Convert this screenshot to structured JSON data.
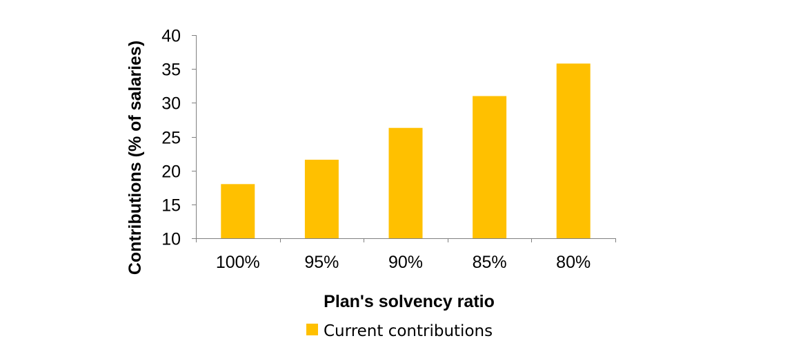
{
  "chart_data": {
    "type": "bar",
    "categories": [
      "100%",
      "95%",
      "90%",
      "85%",
      "80%"
    ],
    "series": [
      {
        "name": "Current contributions",
        "values": [
          18,
          21.6,
          26.3,
          31,
          35.8
        ],
        "color": "#FFC000"
      }
    ],
    "xlabel": "Plan's solvency ratio",
    "ylabel": "Contributions (% of salaries)",
    "ylim": [
      10,
      40
    ],
    "yticks": [
      10,
      15,
      20,
      25,
      30,
      35,
      40
    ],
    "grid": false,
    "legend_position": "bottom"
  }
}
